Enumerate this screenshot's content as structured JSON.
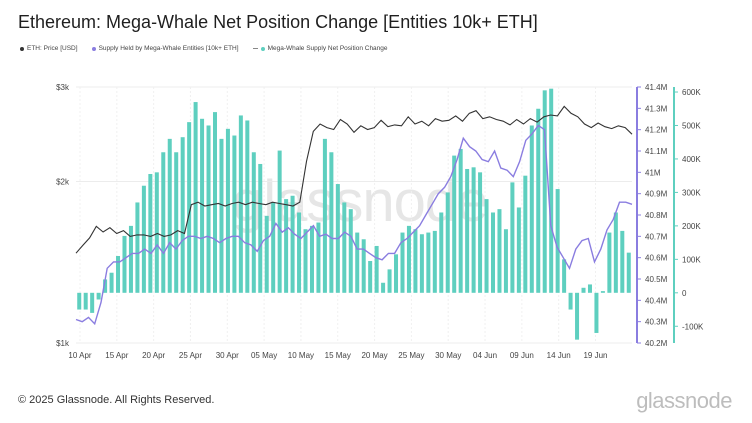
{
  "title": "Ethereum: Mega-Whale Net Position Change [Entities 10k+ ETH]",
  "footer": "© 2025 Glassnode. All Rights Reserved.",
  "brand": "glassnode",
  "watermark": "glassnode",
  "legend": [
    {
      "label": "ETH: Price [USD]",
      "color": "#333333"
    },
    {
      "label": "Supply Held by Mega-Whale Entities [10k+ ETH]",
      "color": "#8a7de0"
    },
    {
      "label": "Mega-Whale Supply Net Position Change",
      "color": "#5ecfbf"
    }
  ],
  "chart_data": {
    "type": "bar",
    "log_scale_left": true,
    "x_labels": [
      "10 Apr",
      "15 Apr",
      "20 Apr",
      "25 Apr",
      "30 Apr",
      "05 May",
      "10 May",
      "15 May",
      "20 May",
      "25 May",
      "30 May",
      "04 Jun",
      "09 Jun",
      "14 Jun",
      "19 Jun"
    ],
    "left_axis": {
      "ticks": [
        "$3k",
        "$2k",
        "$1k"
      ]
    },
    "mid_axis": {
      "ticks": [
        "41.4M",
        "41.3M",
        "41.2M",
        "41.1M",
        "41M",
        "40.9M",
        "40.8M",
        "40.7M",
        "40.6M",
        "40.5M",
        "40.4M",
        "40.3M",
        "40.2M"
      ],
      "ylim": [
        40.2,
        41.4
      ]
    },
    "right_axis": {
      "ticks": [
        "600K",
        "500K",
        "400K",
        "300K",
        "200K",
        "100K",
        "0",
        "-100K"
      ],
      "ylim": [
        -150,
        615
      ]
    },
    "series": [
      {
        "name": "Mega-Whale Supply Net Position Change",
        "unit": "K ETH",
        "values": [
          -50,
          -50,
          -60,
          -20,
          40,
          60,
          110,
          170,
          200,
          270,
          320,
          355,
          360,
          420,
          460,
          420,
          465,
          510,
          570,
          520,
          500,
          540,
          460,
          490,
          470,
          530,
          515,
          420,
          385,
          230,
          270,
          425,
          280,
          290,
          240,
          190,
          200,
          210,
          460,
          420,
          325,
          270,
          250,
          180,
          160,
          95,
          140,
          30,
          70,
          115,
          180,
          200,
          190,
          175,
          180,
          185,
          240,
          300,
          410,
          430,
          370,
          375,
          360,
          280,
          240,
          250,
          190,
          330,
          255,
          350,
          500,
          550,
          605,
          610,
          310,
          100,
          -50,
          -140,
          15,
          25,
          -120,
          5,
          180,
          240,
          185,
          120
        ]
      },
      {
        "name": "Supply Held by Mega-Whale Entities [10k+ ETH]",
        "unit": "M ETH",
        "values": [
          40.31,
          40.3,
          40.32,
          40.29,
          40.39,
          40.55,
          40.58,
          40.58,
          40.6,
          40.62,
          40.62,
          40.64,
          40.62,
          40.66,
          40.62,
          40.67,
          40.64,
          40.68,
          40.7,
          40.7,
          40.69,
          40.7,
          40.69,
          40.67,
          40.69,
          40.7,
          40.7,
          40.67,
          40.66,
          40.63,
          40.68,
          40.7,
          40.76,
          40.72,
          40.74,
          40.71,
          40.69,
          40.72,
          40.75,
          40.7,
          40.71,
          40.69,
          40.69,
          40.72,
          40.7,
          40.64,
          40.64,
          40.62,
          40.6,
          40.59,
          40.62,
          40.62,
          40.67,
          40.69,
          40.72,
          40.75,
          40.8,
          40.85,
          40.9,
          40.93,
          40.98,
          41.06,
          41.16,
          41.12,
          41.1,
          41.06,
          41.05,
          41.1,
          41.02,
          41.01,
          40.98,
          41.05,
          41.15,
          41.18,
          41.22,
          41.2,
          40.75,
          40.65,
          40.6,
          40.55,
          40.64,
          40.68,
          40.69,
          40.58,
          40.64,
          40.73,
          40.78,
          40.86,
          40.86,
          40.85
        ]
      },
      {
        "name": "ETH: Price [USD]",
        "unit": "USD",
        "values": [
          1470,
          1520,
          1570,
          1650,
          1610,
          1640,
          1600,
          1620,
          1580,
          1590,
          1590,
          1580,
          1600,
          1580,
          1590,
          1620,
          1600,
          1810,
          1830,
          1800,
          1810,
          1820,
          1800,
          1820,
          1830,
          1810,
          1830,
          1820,
          1810,
          1830,
          1820,
          1810,
          1800,
          1830,
          2180,
          2480,
          2560,
          2520,
          2500,
          2610,
          2560,
          2470,
          2540,
          2500,
          2520,
          2600,
          2530,
          2550,
          2540,
          2640,
          2560,
          2590,
          2540,
          2620,
          2590,
          2600,
          2650,
          2590,
          2680,
          2710,
          2620,
          2640,
          2610,
          2590,
          2550,
          2610,
          2560,
          2620,
          2580,
          2640,
          2660,
          2650,
          2760,
          2680,
          2640,
          2560,
          2520,
          2570,
          2530,
          2510,
          2540,
          2520,
          2450
        ]
      }
    ]
  }
}
